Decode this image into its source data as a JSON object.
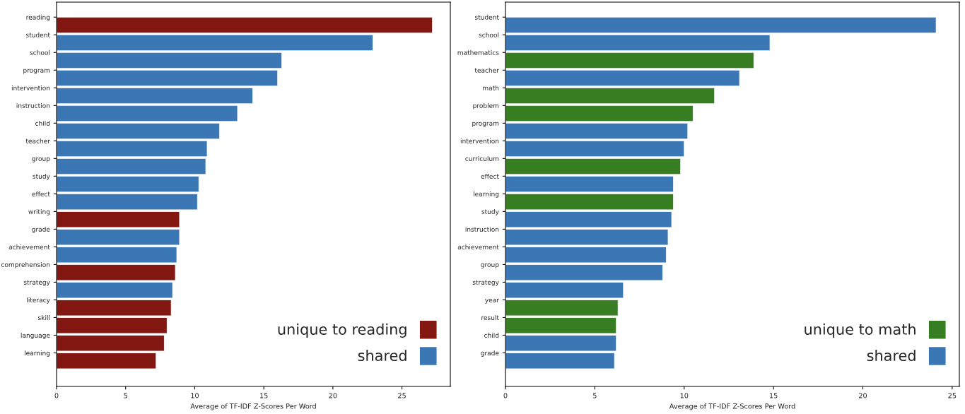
{
  "chart_data": [
    {
      "type": "bar",
      "orientation": "horizontal",
      "xlabel": "Average of TF-IDF Z-Scores Per Word",
      "categories": [
        "reading",
        "student",
        "school",
        "program",
        "intervention",
        "instruction",
        "child",
        "teacher",
        "group",
        "study",
        "effect",
        "writing",
        "grade",
        "achievement",
        "comprehension",
        "strategy",
        "literacy",
        "skill",
        "language",
        "learning"
      ],
      "series": [
        {
          "name": "unique to reading",
          "color": "#821811",
          "values": [
            27.2,
            null,
            null,
            null,
            null,
            null,
            null,
            null,
            null,
            null,
            null,
            8.9,
            null,
            null,
            8.6,
            null,
            8.3,
            8.0,
            7.8,
            7.2
          ]
        },
        {
          "name": "shared",
          "color": "#3a77b4",
          "values": [
            null,
            22.9,
            16.3,
            16.0,
            14.2,
            13.1,
            11.8,
            10.9,
            10.8,
            10.3,
            10.2,
            null,
            8.9,
            8.7,
            null,
            8.4,
            null,
            null,
            null,
            null
          ]
        }
      ],
      "xlim": [
        0,
        28.5
      ],
      "xticks": [
        0,
        5,
        10,
        15,
        20,
        25
      ],
      "grid": false,
      "legend": "bottom right"
    },
    {
      "type": "bar",
      "orientation": "horizontal",
      "xlabel": "Average of TF-IDF Z-Scores Per Word",
      "categories": [
        "student",
        "school",
        "mathematics",
        "teacher",
        "math",
        "problem",
        "program",
        "intervention",
        "curriculum",
        "effect",
        "learning",
        "study",
        "instruction",
        "achievement",
        "group",
        "strategy",
        "year",
        "result",
        "child",
        "grade"
      ],
      "series": [
        {
          "name": "unique to math",
          "color": "#377e22",
          "values": [
            null,
            null,
            13.9,
            null,
            11.7,
            10.5,
            null,
            null,
            9.8,
            null,
            9.4,
            null,
            null,
            null,
            null,
            null,
            6.3,
            6.2,
            null,
            null
          ]
        },
        {
          "name": "shared",
          "color": "#3a77b4",
          "values": [
            24.1,
            14.8,
            null,
            13.1,
            null,
            null,
            10.2,
            10.0,
            null,
            9.4,
            null,
            9.3,
            9.1,
            9.0,
            8.8,
            6.6,
            null,
            null,
            6.2,
            6.1
          ]
        }
      ],
      "xlim": [
        0,
        25.4
      ],
      "xticks": [
        0,
        5,
        10,
        15,
        20,
        25
      ],
      "grid": false,
      "legend": "bottom right"
    }
  ]
}
